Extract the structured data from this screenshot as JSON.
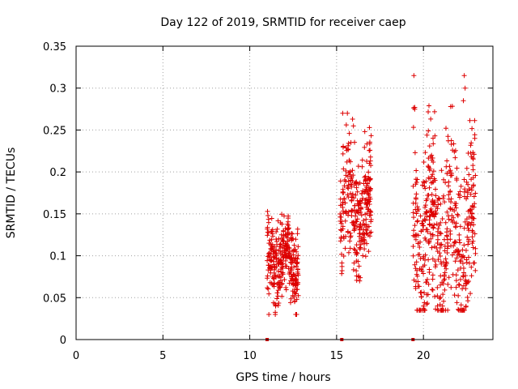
{
  "chart_data": {
    "type": "scatter",
    "title": "Day 122 of 2019, SRMTID for receiver caep",
    "xlabel": "GPS time / hours",
    "ylabel": "SRMTID / TECUs",
    "xlim": [
      0,
      24
    ],
    "ylim": [
      0,
      0.35
    ],
    "xticks": [
      0,
      5,
      10,
      15,
      20
    ],
    "xtick_labels": [
      "0",
      "5",
      "10",
      "15",
      "20"
    ],
    "yticks": [
      0,
      0.05,
      0.1,
      0.15,
      0.2,
      0.25,
      0.3,
      0.35
    ],
    "ytick_labels": [
      "0",
      "0.05",
      "0.1",
      "0.15",
      "0.2",
      "0.25",
      "0.3",
      "0.35"
    ],
    "grid": true,
    "marker": "+",
    "colors": {
      "series": "#dd0000",
      "grid": "#a0a0a0",
      "axis": "#000000"
    },
    "zero_markers_x": [
      11.0,
      15.3,
      19.4
    ],
    "clusters": [
      {
        "x_range": [
          11.0,
          12.8
        ],
        "y_range": [
          0.03,
          0.155
        ],
        "y_center": 0.095,
        "count": 320
      },
      {
        "x_range": [
          15.2,
          17.0
        ],
        "y_range": [
          0.07,
          0.27
        ],
        "y_center": 0.155,
        "count": 300
      },
      {
        "x_range": [
          19.4,
          23.0
        ],
        "y_range": [
          0.035,
          0.315
        ],
        "y_center": 0.13,
        "count": 520
      }
    ],
    "highlight_points": [
      {
        "x": 19.45,
        "y": 0.315
      },
      {
        "x": 22.35,
        "y": 0.315
      },
      {
        "x": 22.4,
        "y": 0.3
      },
      {
        "x": 19.5,
        "y": 0.277
      },
      {
        "x": 15.35,
        "y": 0.27
      },
      {
        "x": 22.3,
        "y": 0.285
      },
      {
        "x": 11.1,
        "y": 0.03
      },
      {
        "x": 22.0,
        "y": 0.036
      },
      {
        "x": 20.0,
        "y": 0.04
      },
      {
        "x": 21.1,
        "y": 0.04
      }
    ]
  }
}
